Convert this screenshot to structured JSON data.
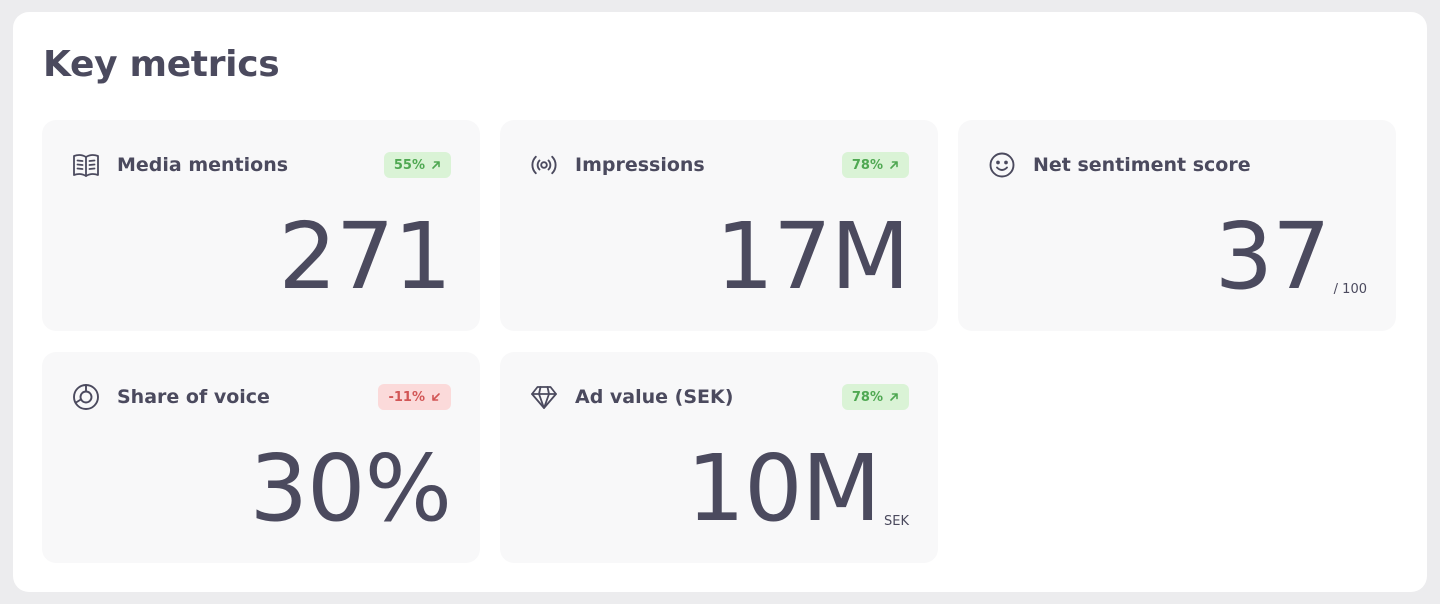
{
  "title": "Key metrics",
  "colors": {
    "positive_bg": "#daf3d6",
    "positive_text": "#4fa852",
    "negative_bg": "#fbdada",
    "negative_text": "#d25656",
    "text": "#4b4a5e",
    "card_bg": "#f8f8f9"
  },
  "metrics": [
    {
      "label": "Media mentions",
      "icon": "book-open-icon",
      "change": "55%",
      "change_direction": "up",
      "value": "271",
      "suffix": ""
    },
    {
      "label": "Impressions",
      "icon": "broadcast-icon",
      "change": "78%",
      "change_direction": "up",
      "value": "17M",
      "suffix": ""
    },
    {
      "label": "Net sentiment score",
      "icon": "smiley-icon",
      "change": "",
      "change_direction": "",
      "value": "37",
      "suffix": "/ 100"
    },
    {
      "label": "Share of voice",
      "icon": "pie-chart-icon",
      "change": "-11%",
      "change_direction": "down",
      "value": "30%",
      "suffix": ""
    },
    {
      "label": "Ad value (SEK)",
      "icon": "diamond-icon",
      "change": "78%",
      "change_direction": "up",
      "value": "10M",
      "suffix": "SEK"
    }
  ]
}
